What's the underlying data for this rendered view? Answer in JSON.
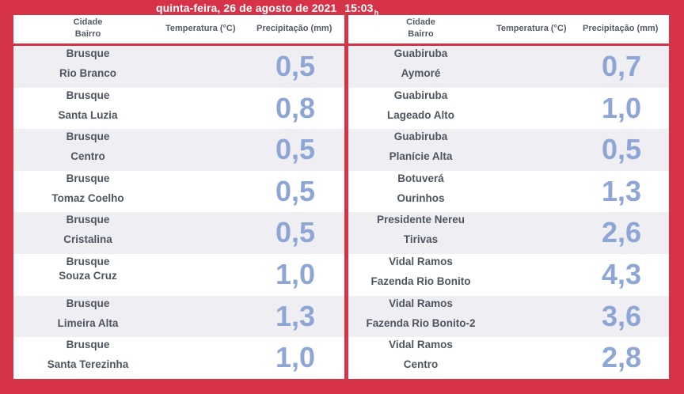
{
  "datetime": {
    "date": "quinta-feira, 26 de agosto de 2021",
    "time": "15:03",
    "time_suffix": "h"
  },
  "header": {
    "col_city": "Cidade",
    "col_bairro": "Bairro",
    "col_temp": "Temperatura (°C)",
    "col_precip": "Precipitação (mm)"
  },
  "left_rows": [
    {
      "city": "Brusque",
      "bairro": "Rio Branco",
      "precip": "0,5"
    },
    {
      "city": "Brusque",
      "bairro": "Santa Luzia",
      "precip": "0,8"
    },
    {
      "city": "Brusque",
      "bairro": "Centro",
      "precip": "0,5"
    },
    {
      "city": "Brusque",
      "bairro": "Tomaz Coelho",
      "precip": "0,5"
    },
    {
      "city": "Brusque",
      "bairro": "Cristalina",
      "precip": "0,5"
    },
    {
      "city": "Brusque",
      "bairro": "Souza Cruz",
      "precip": "1,0"
    },
    {
      "city": "Brusque",
      "bairro": "Limeira Alta",
      "precip": "1,3"
    },
    {
      "city": "Brusque",
      "bairro": "Santa Terezinha",
      "precip": "1,0"
    }
  ],
  "right_rows": [
    {
      "city": "Guabiruba",
      "bairro": "Aymoré",
      "precip": "0,7"
    },
    {
      "city": "Guabiruba",
      "bairro": "Lageado Alto",
      "precip": "1,0"
    },
    {
      "city": "Guabiruba",
      "bairro": "Planície Alta",
      "precip": "0,5"
    },
    {
      "city": "Botuverá",
      "bairro": "Ourinhos",
      "precip": "1,3"
    },
    {
      "city": "Presidente Nereu",
      "bairro": "Tirivas",
      "precip": "2,6"
    },
    {
      "city": "Vidal Ramos",
      "bairro": "Fazenda Rio Bonito",
      "precip": "4,3"
    },
    {
      "city": "Vidal Ramos",
      "bairro": "Fazenda Rio Bonito-2",
      "precip": "3,6"
    },
    {
      "city": "Vidal Ramos",
      "bairro": "Centro",
      "precip": "2,8"
    }
  ]
}
